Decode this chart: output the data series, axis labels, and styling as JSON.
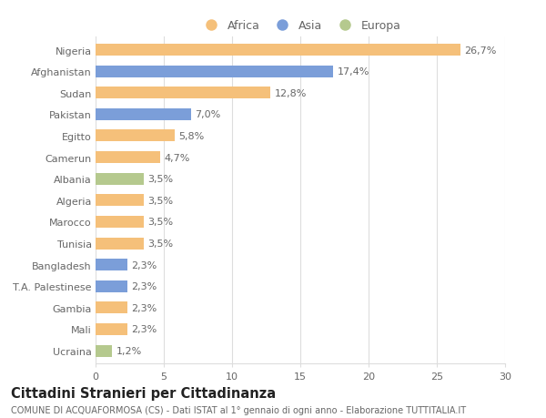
{
  "categories": [
    "Nigeria",
    "Afghanistan",
    "Sudan",
    "Pakistan",
    "Egitto",
    "Camerun",
    "Albania",
    "Algeria",
    "Marocco",
    "Tunisia",
    "Bangladesh",
    "T.A. Palestinese",
    "Gambia",
    "Mali",
    "Ucraina"
  ],
  "values": [
    26.7,
    17.4,
    12.8,
    7.0,
    5.8,
    4.7,
    3.5,
    3.5,
    3.5,
    3.5,
    2.3,
    2.3,
    2.3,
    2.3,
    1.2
  ],
  "labels": [
    "26,7%",
    "17,4%",
    "12,8%",
    "7,0%",
    "5,8%",
    "4,7%",
    "3,5%",
    "3,5%",
    "3,5%",
    "3,5%",
    "2,3%",
    "2,3%",
    "2,3%",
    "2,3%",
    "1,2%"
  ],
  "continents": [
    "Africa",
    "Asia",
    "Africa",
    "Asia",
    "Africa",
    "Africa",
    "Europa",
    "Africa",
    "Africa",
    "Africa",
    "Asia",
    "Asia",
    "Africa",
    "Africa",
    "Europa"
  ],
  "colors": {
    "Africa": "#F5C07A",
    "Asia": "#7B9ED9",
    "Europa": "#B5C98E"
  },
  "legend_labels": [
    "Africa",
    "Asia",
    "Europa"
  ],
  "title": "Cittadini Stranieri per Cittadinanza",
  "subtitle": "COMUNE DI ACQUAFORMOSA (CS) - Dati ISTAT al 1° gennaio di ogni anno - Elaborazione TUTTITALIA.IT",
  "xlim": [
    0,
    30
  ],
  "xticks": [
    0,
    5,
    10,
    15,
    20,
    25,
    30
  ],
  "bg_color": "#ffffff",
  "grid_color": "#dddddd",
  "bar_height": 0.55,
  "label_fontsize": 8,
  "tick_fontsize": 8,
  "title_fontsize": 10.5,
  "subtitle_fontsize": 7
}
